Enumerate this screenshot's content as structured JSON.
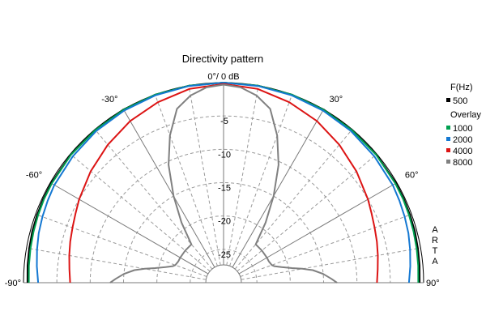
{
  "chart_data": {
    "type": "line",
    "subtype": "polar-half",
    "title": "Directivity pattern",
    "top_label": "0°/ 0 dB",
    "angle_labels": [
      "-90°",
      "-60°",
      "-30°",
      "30°",
      "60°",
      "90°"
    ],
    "db_ticks": [
      "-5",
      "-10",
      "-15",
      "-20",
      "-25"
    ],
    "db_range": [
      -30,
      0
    ],
    "angle_range": [
      -90,
      90
    ],
    "grid": true,
    "legend_position": "right",
    "legend_header": "F(Hz)",
    "legend_overlay_header": "Overlay",
    "watermark": "ARTA",
    "colors": {
      "grid_major": "#7a7a7a",
      "grid_minor": "#9a9a9a",
      "outline": "#000000"
    },
    "series": [
      {
        "name": "500",
        "color": "#000000",
        "angles": [
          -90,
          -85,
          -80,
          -75,
          -70,
          -65,
          -60,
          -50,
          -40,
          -30,
          -20,
          -10,
          0,
          10,
          20,
          30,
          40,
          50,
          60,
          65,
          70,
          75,
          80,
          85,
          90
        ],
        "db": [
          -0.6,
          -0.5,
          -0.4,
          -0.3,
          -0.25,
          -0.2,
          -0.15,
          -0.1,
          -0.05,
          0,
          0,
          0,
          0,
          0,
          0,
          0,
          -0.05,
          -0.1,
          -0.15,
          -0.2,
          -0.25,
          -0.3,
          -0.4,
          -0.5,
          -0.6
        ]
      },
      {
        "name": "1000",
        "color": "#00a050",
        "angles": [
          -90,
          -85,
          -80,
          -75,
          -70,
          -65,
          -60,
          -50,
          -40,
          -30,
          -20,
          -10,
          0,
          10,
          20,
          30,
          40,
          50,
          60,
          65,
          70,
          75,
          80,
          85,
          90
        ],
        "db": [
          -0.8,
          -0.7,
          -0.6,
          -0.5,
          -0.4,
          -0.3,
          -0.25,
          -0.15,
          -0.1,
          -0.05,
          0,
          0,
          0,
          0,
          0,
          -0.05,
          -0.1,
          -0.15,
          -0.25,
          -0.3,
          -0.4,
          -0.5,
          -0.6,
          -0.7,
          -0.8
        ]
      },
      {
        "name": "2000",
        "color": "#1478d2",
        "angles": [
          -90,
          -85,
          -80,
          -75,
          -70,
          -65,
          -60,
          -50,
          -40,
          -30,
          -20,
          -10,
          0,
          10,
          20,
          30,
          40,
          50,
          60,
          65,
          70,
          75,
          80,
          85,
          90
        ],
        "db": [
          -2.2,
          -1.9,
          -1.6,
          -1.3,
          -1.1,
          -0.9,
          -0.7,
          -0.5,
          -0.3,
          -0.2,
          -0.1,
          -0.05,
          0,
          -0.05,
          -0.1,
          -0.2,
          -0.3,
          -0.5,
          -0.7,
          -0.9,
          -1.1,
          -1.3,
          -1.6,
          -1.9,
          -2.2
        ]
      },
      {
        "name": "4000",
        "color": "#dc1414",
        "angles": [
          -90,
          -85,
          -80,
          -75,
          -70,
          -65,
          -60,
          -50,
          -40,
          -30,
          -20,
          -10,
          0,
          10,
          20,
          30,
          40,
          50,
          60,
          65,
          70,
          75,
          80,
          85,
          90
        ],
        "db": [
          -7.0,
          -6.8,
          -6.5,
          -6.2,
          -5.9,
          -5.5,
          -5.0,
          -4.0,
          -3.0,
          -2.0,
          -1.2,
          -0.5,
          -0.2,
          -0.5,
          -1.2,
          -2.0,
          -3.0,
          -4.0,
          -5.0,
          -5.5,
          -5.9,
          -6.2,
          -6.5,
          -6.8,
          -7.0
        ]
      },
      {
        "name": "8000",
        "color": "#808080",
        "angles": [
          -90,
          -88,
          -85,
          -82,
          -80,
          -78,
          -75,
          -72,
          -70,
          -65,
          -60,
          -50,
          -40,
          -35,
          -30,
          -25,
          -20,
          -15,
          -10,
          -5,
          0,
          5,
          10,
          15,
          20,
          25,
          30,
          35,
          40,
          50,
          60,
          65,
          70,
          72,
          75,
          78,
          80,
          82,
          85,
          88,
          90
        ],
        "db": [
          -13.0,
          -13.8,
          -15.0,
          -16.5,
          -18.0,
          -19.5,
          -21.0,
          -22.0,
          -22.3,
          -22.5,
          -22.5,
          -22.5,
          -22.5,
          -19.0,
          -15.0,
          -10.5,
          -6.5,
          -3.0,
          -1.5,
          -0.6,
          -0.3,
          -0.6,
          -1.5,
          -3.0,
          -6.5,
          -10.5,
          -15.0,
          -19.0,
          -22.5,
          -22.5,
          -22.5,
          -22.5,
          -22.3,
          -22.0,
          -21.0,
          -19.5,
          -18.0,
          -16.5,
          -15.0,
          -13.8,
          -13.0
        ]
      }
    ]
  }
}
